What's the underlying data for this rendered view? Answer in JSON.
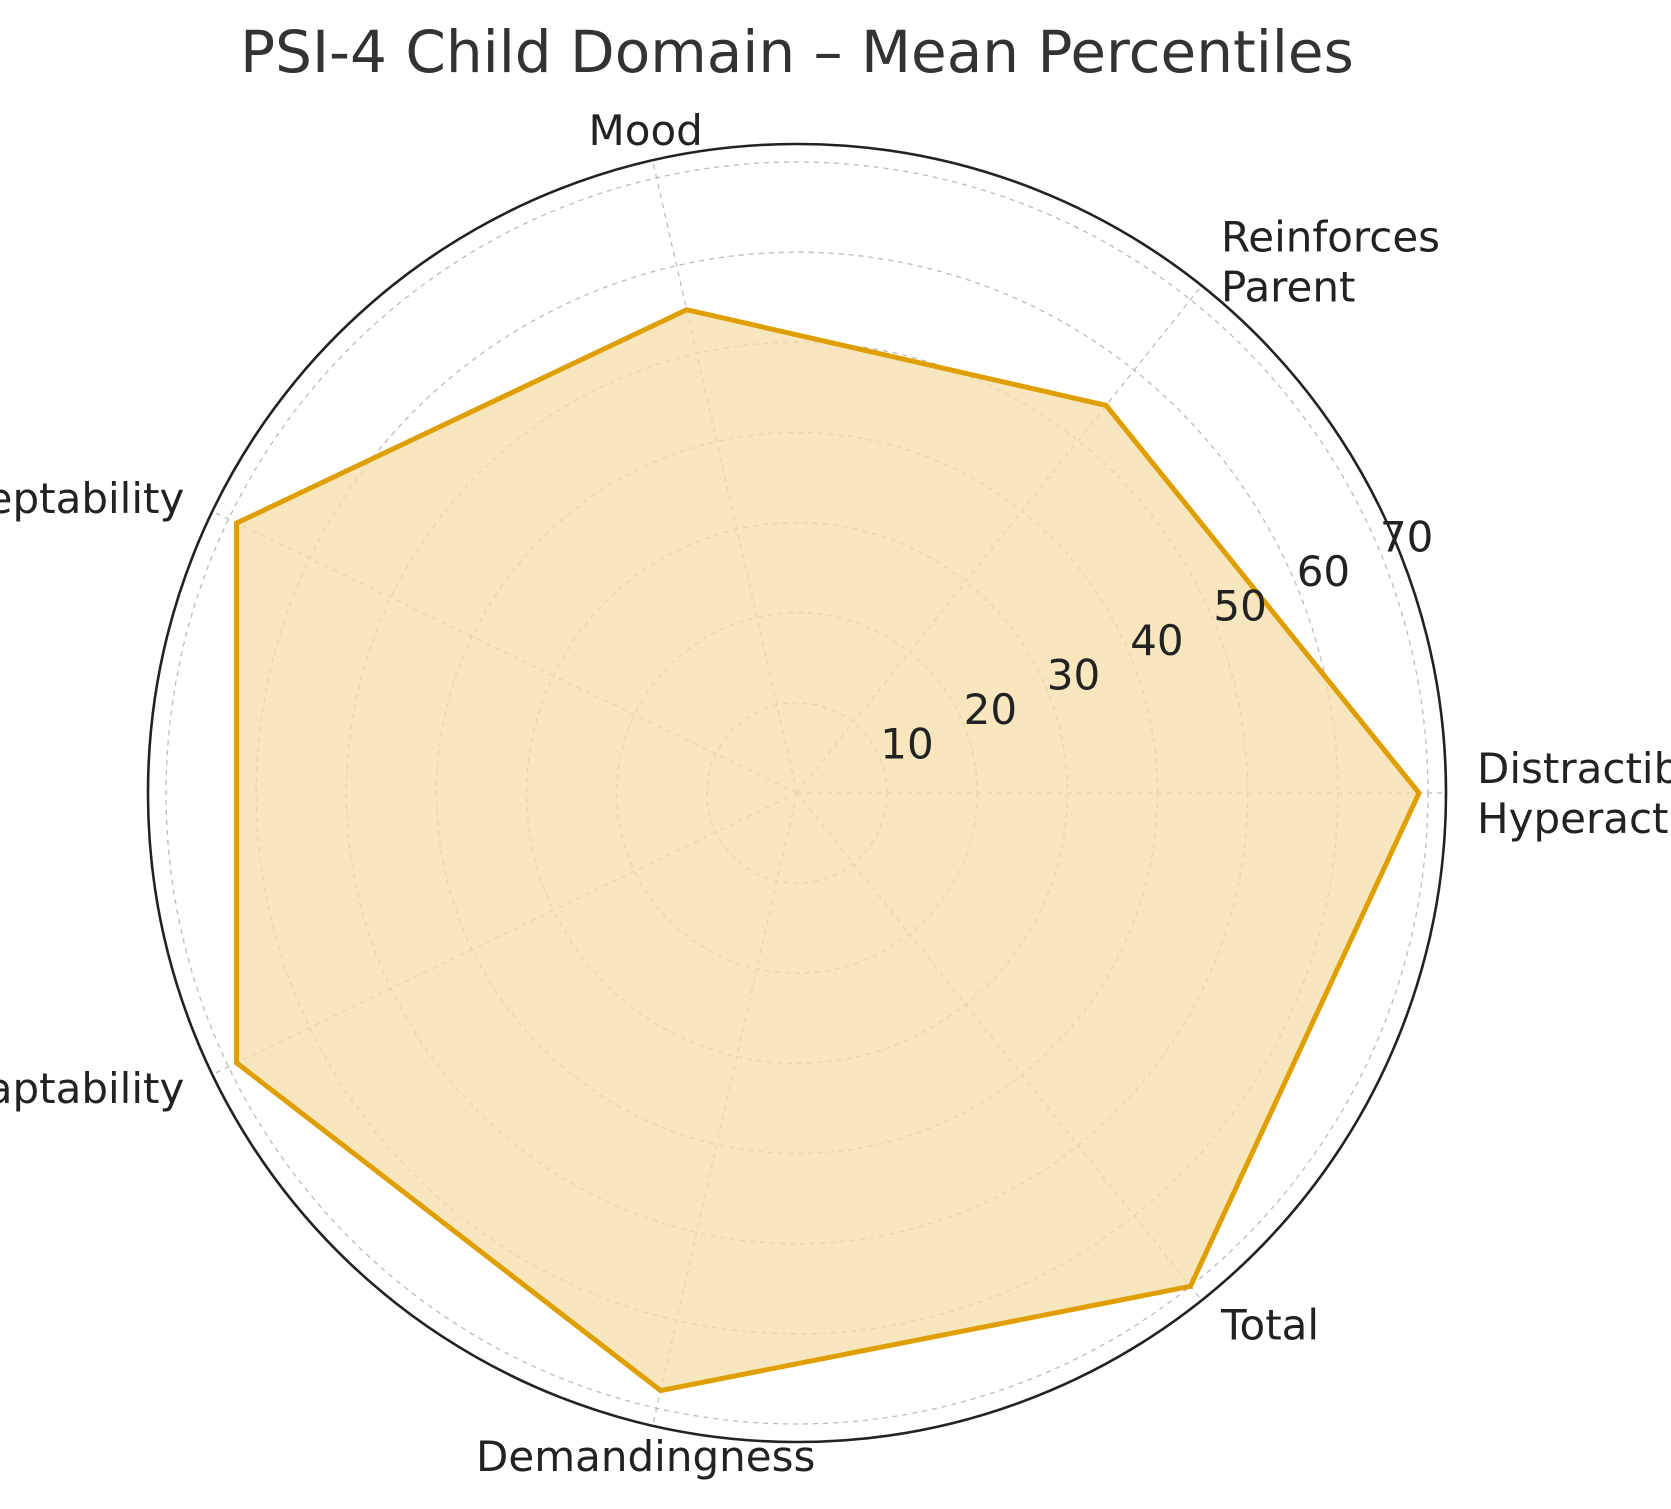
{
  "chart_data": {
    "type": "radar",
    "title": "PSI-4 Child Domain – Mean Percentiles",
    "categories": [
      "Distractibility/\nHyperactivity",
      "Reinforces\nParent",
      "Mood",
      "Acceptability",
      "Adaptability",
      "Demandingness",
      "Total"
    ],
    "series": [
      {
        "name": "Mean percentile",
        "values": [
          69,
          55,
          55,
          69,
          69,
          68,
          70
        ]
      }
    ],
    "rlim": [
      0,
      72
    ],
    "rticks": [
      10,
      20,
      30,
      40,
      50,
      60,
      70
    ],
    "rtick_labels": [
      "10",
      "20",
      "30",
      "40",
      "50",
      "60",
      "70"
    ],
    "grid": true,
    "colors": {
      "line": "#E09F00",
      "fill": "#F5DFA8",
      "grid": "#BBBBBB",
      "frame": "#222222"
    }
  }
}
